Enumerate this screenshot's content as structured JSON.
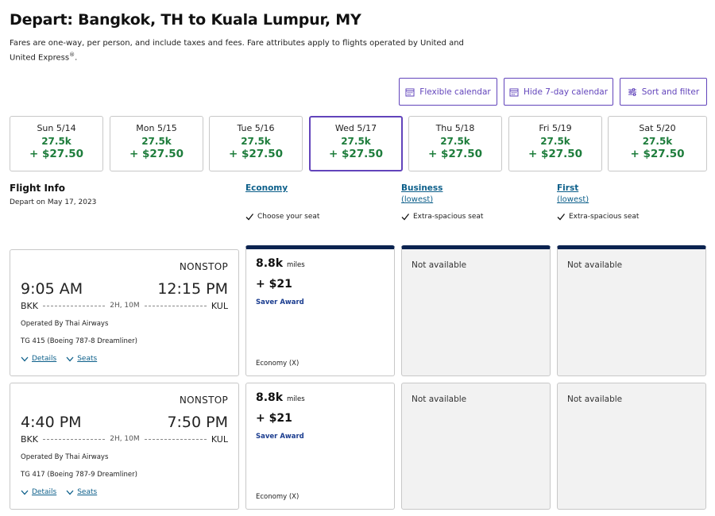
{
  "page": {
    "title": "Depart: Bangkok, TH to Kuala Lumpur, MY",
    "subtitle": "Fares are one-way, per person, and include taxes and fees. Fare attributes apply to flights operated by United and United Express",
    "subtitle_mark": "®",
    "subtitle_end": "."
  },
  "toolbar": {
    "flexible_calendar": "Flexible calendar",
    "hide_calendar": "Hide 7-day calendar",
    "sort_filter": "Sort and filter"
  },
  "dates": [
    {
      "day": "Sun 5/14",
      "miles": "27.5k",
      "price": "+ $27.50"
    },
    {
      "day": "Mon 5/15",
      "miles": "27.5k",
      "price": "+ $27.50"
    },
    {
      "day": "Tue 5/16",
      "miles": "27.5k",
      "price": "+ $27.50"
    },
    {
      "day": "Wed 5/17",
      "miles": "27.5k",
      "price": "+ $27.50"
    },
    {
      "day": "Thu 5/18",
      "miles": "27.5k",
      "price": "+ $27.50"
    },
    {
      "day": "Fri 5/19",
      "miles": "27.5k",
      "price": "+ $27.50"
    },
    {
      "day": "Sat 5/20",
      "miles": "27.5k",
      "price": "+ $27.50"
    }
  ],
  "flight_info": {
    "title": "Flight Info",
    "depart_on": "Depart on May 17, 2023"
  },
  "cabins": {
    "economy": {
      "name": "Economy",
      "feature": "Choose your seat"
    },
    "business": {
      "name": "Business",
      "lowest": "(lowest)",
      "feature": "Extra-spacious seat"
    },
    "first": {
      "name": "First",
      "lowest": "(lowest)",
      "feature": "Extra-spacious seat"
    }
  },
  "flights": [
    {
      "stops": "NONSTOP",
      "depart_time": "9:05 AM",
      "arrive_time": "12:15 PM",
      "origin": "BKK",
      "destination": "KUL",
      "duration": "2H, 10M",
      "operated": "Operated By Thai Airways",
      "equipment": "TG 415 (Boeing 787-8 Dreamliner)",
      "details": "Details",
      "seats": "Seats",
      "economy": {
        "miles": "8.8k",
        "miles_unit": "miles",
        "cash": "+ $21",
        "award": "Saver Award",
        "class": "Economy (X)"
      },
      "business": "Not available",
      "first": "Not available"
    },
    {
      "stops": "NONSTOP",
      "depart_time": "4:40 PM",
      "arrive_time": "7:50 PM",
      "origin": "BKK",
      "destination": "KUL",
      "duration": "2H, 10M",
      "operated": "Operated By Thai Airways",
      "equipment": "TG 417 (Boeing 787-9 Dreamliner)",
      "details": "Details",
      "seats": "Seats",
      "economy": {
        "miles": "8.8k",
        "miles_unit": "miles",
        "cash": "+ $21",
        "award": "Saver Award",
        "class": "Economy (X)"
      },
      "business": "Not available",
      "first": "Not available"
    }
  ],
  "colors": {
    "accent": "#6244bb",
    "price_green": "#1e7d3c",
    "link_blue": "#0c5f8a",
    "cabin_bar": "#0b2350"
  }
}
